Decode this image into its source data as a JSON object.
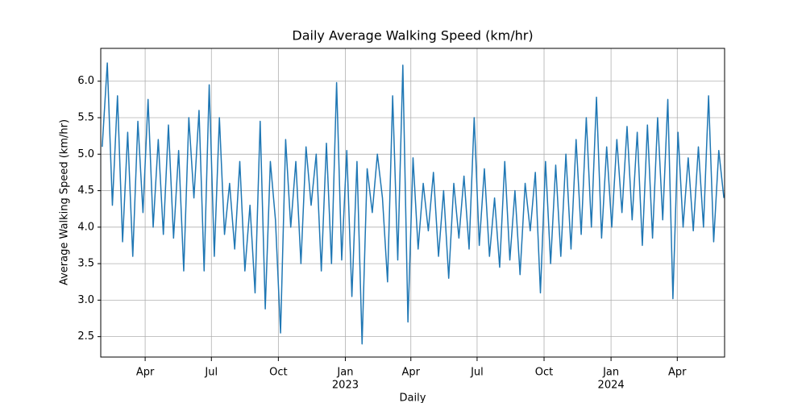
{
  "chart_data": {
    "type": "line",
    "title": "Daily Average Walking Speed (km/hr)",
    "xlabel": "Daily",
    "ylabel": "Average Walking Speed (km/hr)",
    "grid": true,
    "xlim": [
      "2022-01-30",
      "2024-06-05"
    ],
    "ylim": [
      2.22,
      6.45
    ],
    "xticks": [
      {
        "value": "2022-04-01",
        "label": "Apr"
      },
      {
        "value": "2022-07-01",
        "label": "Jul"
      },
      {
        "value": "2022-10-01",
        "label": "Oct"
      },
      {
        "value": "2023-01-01",
        "label": "Jan",
        "sublabel": "2023"
      },
      {
        "value": "2023-04-01",
        "label": "Apr"
      },
      {
        "value": "2023-07-01",
        "label": "Jul"
      },
      {
        "value": "2023-10-01",
        "label": "Oct"
      },
      {
        "value": "2024-01-01",
        "label": "Jan",
        "sublabel": "2024"
      },
      {
        "value": "2024-04-01",
        "label": "Apr"
      }
    ],
    "yticks": [
      2.5,
      {
        "value": 3,
        "label": "3.0"
      },
      3.5,
      {
        "value": 4,
        "label": "4.0"
      },
      4.5,
      {
        "value": 5,
        "label": "5.0"
      },
      5.5,
      {
        "value": 6,
        "label": "6.0"
      }
    ],
    "x": [
      "2022-02-01",
      "2022-02-08",
      "2022-02-15",
      "2022-02-22",
      "2022-03-01",
      "2022-03-08",
      "2022-03-15",
      "2022-03-22",
      "2022-03-29",
      "2022-04-05",
      "2022-04-12",
      "2022-04-19",
      "2022-04-26",
      "2022-05-03",
      "2022-05-10",
      "2022-05-17",
      "2022-05-24",
      "2022-05-31",
      "2022-06-07",
      "2022-06-14",
      "2022-06-21",
      "2022-06-28",
      "2022-07-05",
      "2022-07-12",
      "2022-07-19",
      "2022-07-26",
      "2022-08-02",
      "2022-08-09",
      "2022-08-16",
      "2022-08-23",
      "2022-08-30",
      "2022-09-06",
      "2022-09-13",
      "2022-09-20",
      "2022-09-27",
      "2022-10-04",
      "2022-10-11",
      "2022-10-18",
      "2022-10-25",
      "2022-11-01",
      "2022-11-08",
      "2022-11-15",
      "2022-11-22",
      "2022-11-29",
      "2022-12-06",
      "2022-12-13",
      "2022-12-20",
      "2022-12-27",
      "2023-01-03",
      "2023-01-10",
      "2023-01-17",
      "2023-01-24",
      "2023-01-31",
      "2023-02-07",
      "2023-02-14",
      "2023-02-21",
      "2023-02-28",
      "2023-03-07",
      "2023-03-14",
      "2023-03-21",
      "2023-03-28",
      "2023-04-04",
      "2023-04-11",
      "2023-04-18",
      "2023-04-25",
      "2023-05-02",
      "2023-05-09",
      "2023-05-16",
      "2023-05-23",
      "2023-05-30",
      "2023-06-06",
      "2023-06-13",
      "2023-06-20",
      "2023-06-27",
      "2023-07-04",
      "2023-07-11",
      "2023-07-18",
      "2023-07-25",
      "2023-08-01",
      "2023-08-08",
      "2023-08-15",
      "2023-08-22",
      "2023-08-29",
      "2023-09-05",
      "2023-09-12",
      "2023-09-19",
      "2023-09-26",
      "2023-10-03",
      "2023-10-10",
      "2023-10-17",
      "2023-10-24",
      "2023-10-31",
      "2023-11-07",
      "2023-11-14",
      "2023-11-21",
      "2023-11-28",
      "2023-12-05",
      "2023-12-12",
      "2023-12-19",
      "2023-12-26",
      "2024-01-02",
      "2024-01-09",
      "2024-01-16",
      "2024-01-23",
      "2024-01-30",
      "2024-02-06",
      "2024-02-13",
      "2024-02-20",
      "2024-02-27",
      "2024-03-05",
      "2024-03-12",
      "2024-03-19",
      "2024-03-26",
      "2024-04-02",
      "2024-04-09",
      "2024-04-16",
      "2024-04-23",
      "2024-04-30",
      "2024-05-07",
      "2024-05-14",
      "2024-05-21",
      "2024-05-28",
      "2024-06-04"
    ],
    "series": [
      {
        "name": "Average Walking Speed",
        "color": "#1f77b4",
        "values": [
          5.1,
          6.25,
          4.3,
          5.8,
          3.8,
          5.3,
          3.6,
          5.45,
          4.2,
          5.75,
          4.0,
          5.2,
          3.9,
          5.4,
          3.85,
          5.05,
          3.4,
          5.5,
          4.4,
          5.6,
          3.4,
          5.95,
          3.6,
          5.5,
          3.9,
          4.6,
          3.7,
          4.9,
          3.4,
          4.3,
          3.1,
          5.45,
          2.88,
          4.9,
          4.1,
          2.55,
          5.2,
          4.0,
          4.9,
          3.5,
          5.1,
          4.3,
          5.0,
          3.4,
          5.15,
          3.5,
          5.98,
          3.55,
          5.05,
          3.05,
          4.9,
          2.4,
          4.8,
          4.2,
          5.0,
          4.4,
          3.25,
          5.8,
          3.55,
          6.22,
          2.7,
          4.95,
          3.7,
          4.6,
          3.95,
          4.75,
          3.6,
          4.5,
          3.3,
          4.6,
          3.85,
          4.7,
          3.7,
          5.5,
          3.75,
          4.8,
          3.6,
          4.4,
          3.45,
          4.9,
          3.55,
          4.5,
          3.35,
          4.6,
          3.95,
          4.75,
          3.1,
          4.9,
          3.5,
          4.85,
          3.6,
          5.0,
          3.7,
          5.2,
          3.9,
          5.5,
          4.0,
          5.78,
          3.85,
          5.1,
          4.0,
          5.2,
          4.2,
          5.38,
          4.1,
          5.3,
          3.75,
          5.4,
          3.85,
          5.5,
          4.1,
          5.75,
          3.02,
          5.3,
          4.0,
          4.95,
          3.95,
          5.1,
          4.0,
          5.8,
          3.8,
          5.05,
          4.4
        ]
      }
    ]
  }
}
